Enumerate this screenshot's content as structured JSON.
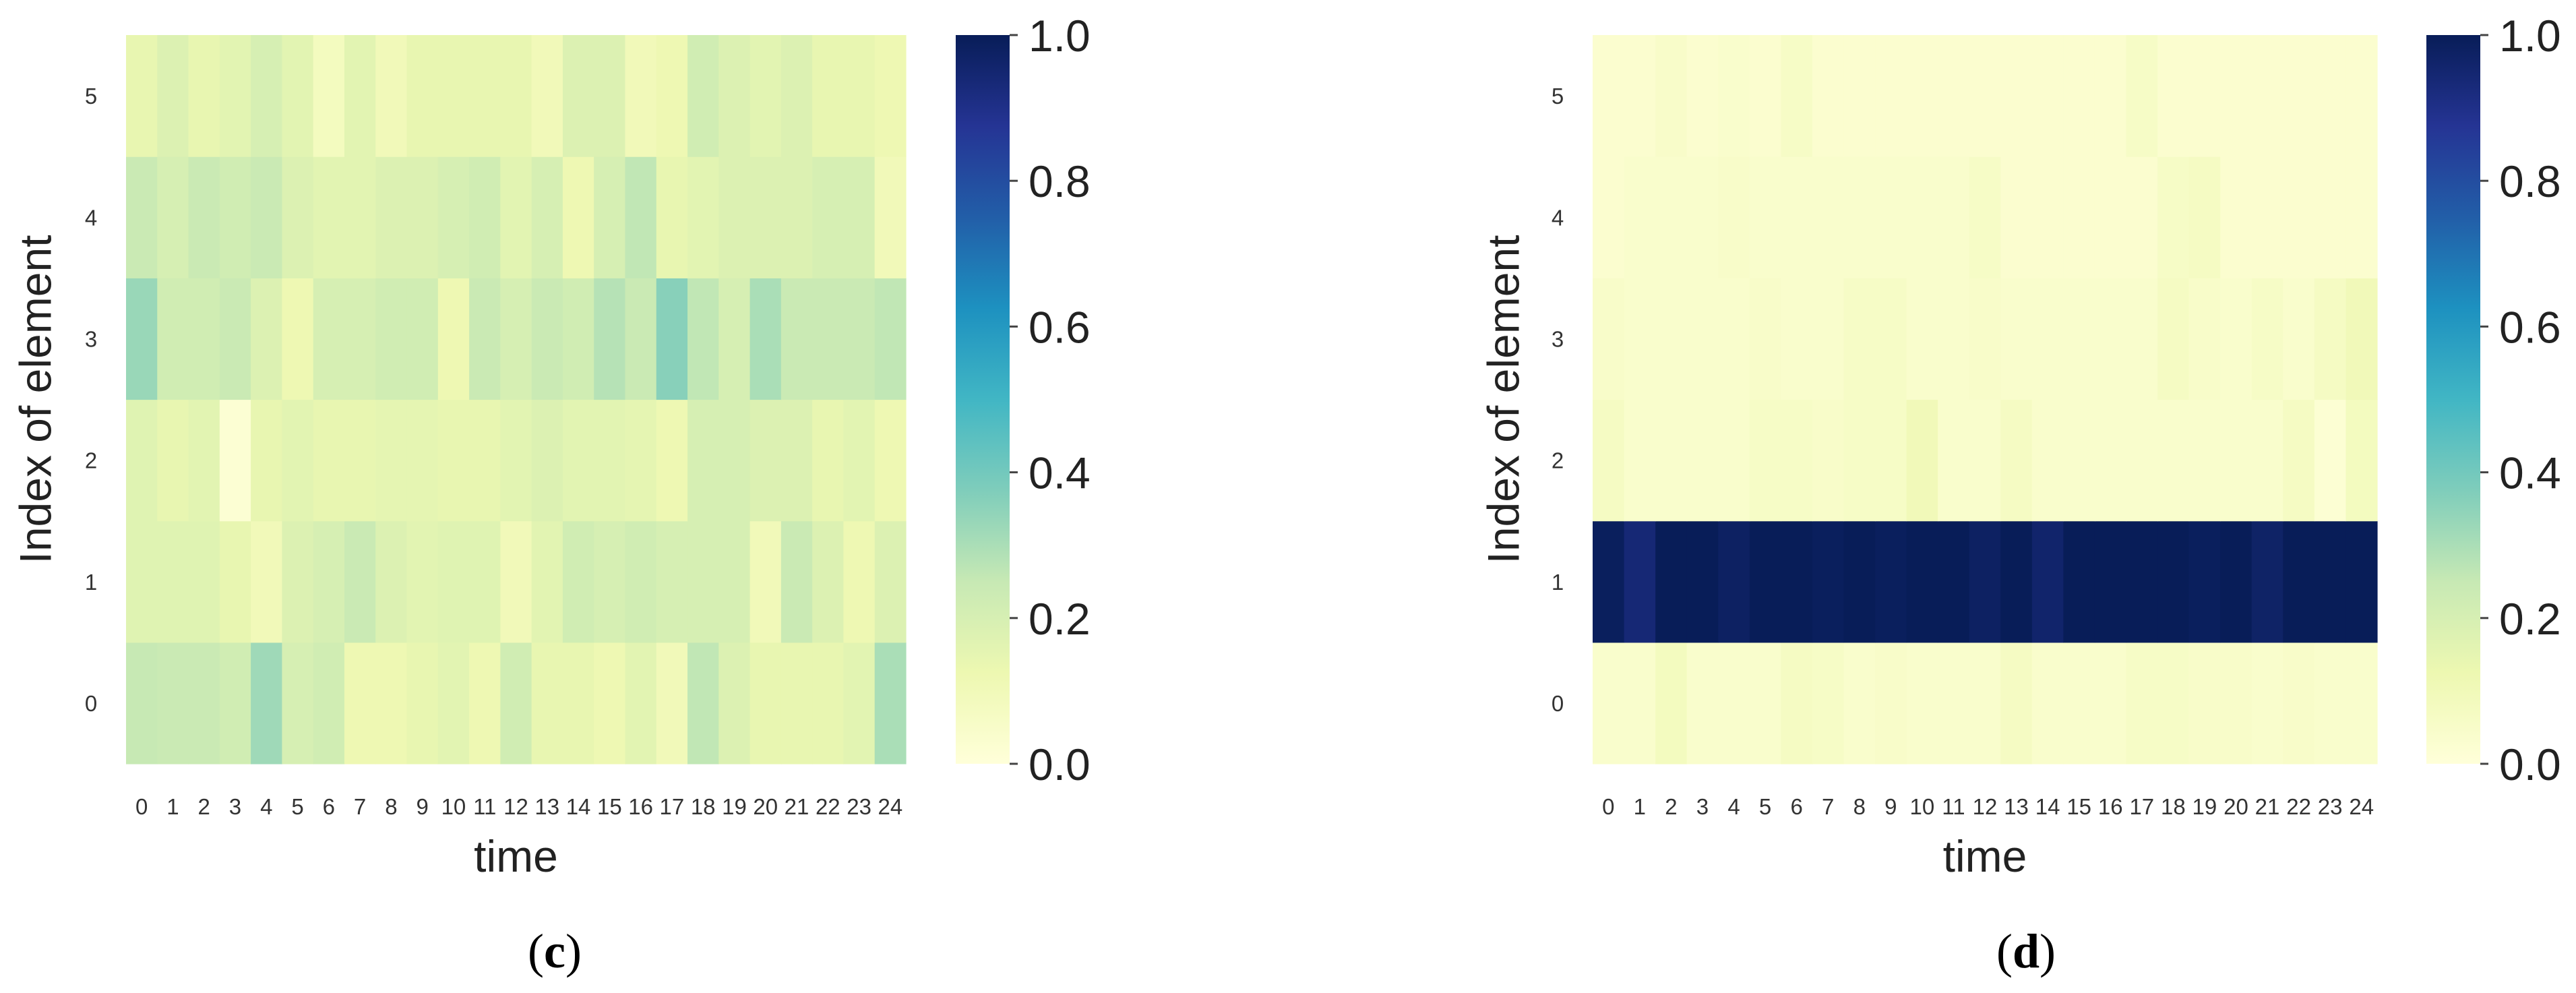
{
  "chart_data": [
    {
      "type": "heatmap",
      "panel_label": "c",
      "xlabel": "time",
      "ylabel": "Index of element",
      "x_ticks": [
        "0",
        "1",
        "2",
        "3",
        "4",
        "5",
        "6",
        "7",
        "8",
        "9",
        "10",
        "11",
        "12",
        "13",
        "14",
        "15",
        "16",
        "17",
        "18",
        "19",
        "20",
        "21",
        "22",
        "23",
        "24"
      ],
      "y_ticks": [
        "0",
        "1",
        "2",
        "3",
        "4",
        "5"
      ],
      "colormap": "YlGnBu",
      "colorbar": {
        "range": [
          0,
          1
        ],
        "ticks": [
          "0.0",
          "0.2",
          "0.4",
          "0.6",
          "0.8",
          "1.0"
        ]
      },
      "values": [
        [
          0.25,
          0.24,
          0.24,
          0.22,
          0.32,
          0.2,
          0.22,
          0.12,
          0.12,
          0.14,
          0.16,
          0.12,
          0.22,
          0.14,
          0.14,
          0.12,
          0.16,
          0.1,
          0.26,
          0.18,
          0.14,
          0.14,
          0.14,
          0.16,
          0.3
        ],
        [
          0.17,
          0.17,
          0.17,
          0.14,
          0.1,
          0.18,
          0.2,
          0.24,
          0.18,
          0.16,
          0.17,
          0.17,
          0.1,
          0.16,
          0.22,
          0.2,
          0.22,
          0.2,
          0.2,
          0.2,
          0.1,
          0.24,
          0.18,
          0.12,
          0.18
        ],
        [
          0.17,
          0.14,
          0.16,
          0.02,
          0.14,
          0.16,
          0.14,
          0.14,
          0.15,
          0.15,
          0.14,
          0.14,
          0.16,
          0.18,
          0.16,
          0.16,
          0.15,
          0.12,
          0.2,
          0.2,
          0.18,
          0.18,
          0.14,
          0.16,
          0.12
        ],
        [
          0.33,
          0.22,
          0.22,
          0.24,
          0.18,
          0.12,
          0.2,
          0.2,
          0.22,
          0.22,
          0.12,
          0.24,
          0.2,
          0.24,
          0.22,
          0.28,
          0.24,
          0.36,
          0.26,
          0.2,
          0.3,
          0.24,
          0.24,
          0.24,
          0.26
        ],
        [
          0.24,
          0.2,
          0.24,
          0.22,
          0.24,
          0.18,
          0.16,
          0.16,
          0.18,
          0.18,
          0.2,
          0.22,
          0.16,
          0.2,
          0.12,
          0.2,
          0.26,
          0.14,
          0.16,
          0.18,
          0.18,
          0.18,
          0.2,
          0.2,
          0.1
        ],
        [
          0.14,
          0.18,
          0.14,
          0.16,
          0.2,
          0.16,
          0.08,
          0.16,
          0.1,
          0.14,
          0.14,
          0.14,
          0.14,
          0.1,
          0.18,
          0.18,
          0.1,
          0.12,
          0.22,
          0.18,
          0.16,
          0.18,
          0.14,
          0.14,
          0.12
        ]
      ]
    },
    {
      "type": "heatmap",
      "panel_label": "d",
      "xlabel": "time",
      "ylabel": "Index of element",
      "x_ticks": [
        "0",
        "1",
        "2",
        "3",
        "4",
        "5",
        "6",
        "7",
        "8",
        "9",
        "10",
        "11",
        "12",
        "13",
        "14",
        "15",
        "16",
        "17",
        "18",
        "19",
        "20",
        "21",
        "22",
        "23",
        "24"
      ],
      "y_ticks": [
        "0",
        "1",
        "2",
        "3",
        "4",
        "5"
      ],
      "colormap": "YlGnBu",
      "colorbar": {
        "range": [
          0,
          1
        ],
        "ticks": [
          "0.0",
          "0.2",
          "0.4",
          "0.6",
          "0.8",
          "1.0"
        ]
      },
      "values": [
        [
          0.04,
          0.04,
          0.08,
          0.04,
          0.04,
          0.04,
          0.07,
          0.06,
          0.04,
          0.05,
          0.04,
          0.04,
          0.04,
          0.07,
          0.04,
          0.04,
          0.04,
          0.06,
          0.06,
          0.05,
          0.05,
          0.04,
          0.05,
          0.04,
          0.04
        ],
        [
          0.99,
          0.94,
          1.0,
          1.0,
          0.98,
          1.0,
          1.0,
          0.99,
          1.0,
          0.99,
          1.0,
          1.0,
          0.98,
          1.0,
          0.96,
          1.0,
          1.0,
          1.0,
          1.0,
          0.99,
          1.0,
          0.97,
          1.0,
          1.0,
          1.0
        ],
        [
          0.07,
          0.04,
          0.04,
          0.04,
          0.04,
          0.06,
          0.06,
          0.05,
          0.06,
          0.06,
          0.1,
          0.04,
          0.04,
          0.07,
          0.04,
          0.04,
          0.04,
          0.04,
          0.04,
          0.04,
          0.04,
          0.04,
          0.07,
          0.02,
          0.08
        ],
        [
          0.05,
          0.04,
          0.04,
          0.04,
          0.04,
          0.05,
          0.04,
          0.04,
          0.06,
          0.06,
          0.04,
          0.04,
          0.05,
          0.04,
          0.04,
          0.04,
          0.04,
          0.04,
          0.07,
          0.05,
          0.04,
          0.06,
          0.04,
          0.07,
          0.1
        ],
        [
          0.03,
          0.04,
          0.04,
          0.04,
          0.05,
          0.04,
          0.04,
          0.04,
          0.04,
          0.04,
          0.04,
          0.04,
          0.06,
          0.03,
          0.03,
          0.03,
          0.03,
          0.03,
          0.06,
          0.07,
          0.03,
          0.03,
          0.03,
          0.03,
          0.03
        ],
        [
          0.03,
          0.03,
          0.05,
          0.03,
          0.04,
          0.03,
          0.06,
          0.03,
          0.03,
          0.03,
          0.03,
          0.03,
          0.03,
          0.03,
          0.03,
          0.03,
          0.03,
          0.06,
          0.03,
          0.03,
          0.03,
          0.03,
          0.03,
          0.03,
          0.03
        ]
      ]
    }
  ]
}
